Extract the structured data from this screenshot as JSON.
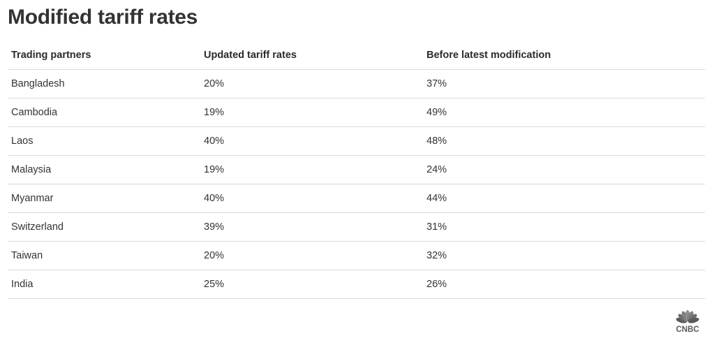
{
  "chart_data": {
    "type": "table",
    "title": "Modified tariff rates",
    "columns": [
      "Trading partners",
      "Updated tariff rates",
      "Before latest modification"
    ],
    "rows": [
      [
        "Bangladesh",
        "20%",
        "37%"
      ],
      [
        "Cambodia",
        "19%",
        "49%"
      ],
      [
        "Laos",
        "40%",
        "48%"
      ],
      [
        "Malaysia",
        "19%",
        "24%"
      ],
      [
        "Myanmar",
        "40%",
        "44%"
      ],
      [
        "Switzerland",
        "39%",
        "31%"
      ],
      [
        "Taiwan",
        "20%",
        "32%"
      ],
      [
        "India",
        "25%",
        "26%"
      ]
    ]
  },
  "branding": {
    "logo_text": "CNBC",
    "logo_icon": "cnbc-peacock-icon",
    "peacock_colors": [
      "#5a5a5a",
      "#6e6e6e",
      "#7f7f7f",
      "#8c8c8c",
      "#7f7f7f",
      "#6e6e6e",
      "#5a5a5a"
    ]
  },
  "colors": {
    "title": "#333333",
    "text": "#333333",
    "rule": "#d9d9d9",
    "logo": "#5a5a5a"
  }
}
